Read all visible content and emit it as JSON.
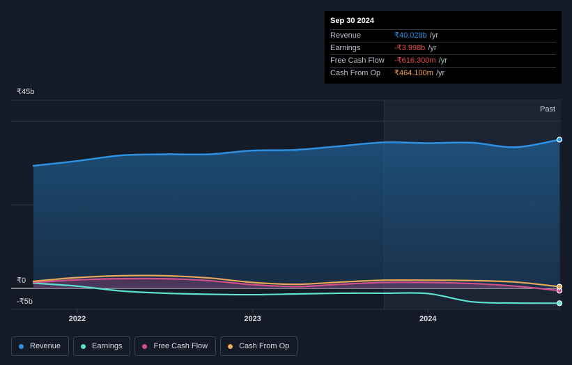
{
  "tooltip": {
    "date": "Sep 30 2024",
    "rows": [
      {
        "label": "Revenue",
        "value": "₹40.028b",
        "unit": "/yr",
        "color": "#2f8fe0"
      },
      {
        "label": "Earnings",
        "value": "-₹3.998b",
        "unit": "/yr",
        "color": "#e84d4d"
      },
      {
        "label": "Free Cash Flow",
        "value": "-₹616.300m",
        "unit": "/yr",
        "color": "#e84d4d"
      },
      {
        "label": "Cash From Op",
        "value": "₹464.100m",
        "unit": "/yr",
        "color": "#f0a24a"
      }
    ]
  },
  "past_label": "Past",
  "legend": [
    {
      "label": "Revenue",
      "color": "#2f8fe0"
    },
    {
      "label": "Earnings",
      "color": "#5ee0d0"
    },
    {
      "label": "Free Cash Flow",
      "color": "#d0508c"
    },
    {
      "label": "Cash From Op",
      "color": "#e8a85a"
    }
  ],
  "chart_data": {
    "type": "line",
    "ylabel_ticks": [
      {
        "value": 45,
        "label": "₹45b"
      },
      {
        "value": 0,
        "label": "₹0"
      },
      {
        "value": -5,
        "label": "-₹5b"
      }
    ],
    "ylim": [
      -5,
      45
    ],
    "xlim": [
      2021.75,
      2024.75
    ],
    "x_ticks": [
      {
        "value": 2022,
        "label": "2022"
      },
      {
        "value": 2023,
        "label": "2023"
      },
      {
        "value": 2024,
        "label": "2024"
      }
    ],
    "past_start": 2023.75,
    "series": [
      {
        "name": "Revenue",
        "color": "#2f8fe0",
        "fill": true,
        "x": [
          2021.75,
          2022.0,
          2022.25,
          2022.5,
          2022.75,
          2023.0,
          2023.25,
          2023.5,
          2023.75,
          2024.0,
          2024.25,
          2024.5,
          2024.75
        ],
        "y": [
          33.0,
          34.3,
          35.8,
          36.1,
          36.1,
          37.1,
          37.3,
          38.3,
          39.3,
          39.1,
          39.2,
          38.0,
          40.03
        ]
      },
      {
        "name": "Earnings",
        "color": "#5ee0d0",
        "fill": false,
        "x": [
          2021.75,
          2022.0,
          2022.25,
          2022.5,
          2022.75,
          2023.0,
          2023.25,
          2023.5,
          2023.75,
          2024.0,
          2024.25,
          2024.5,
          2024.75
        ],
        "y": [
          1.4,
          0.6,
          -0.7,
          -1.3,
          -1.6,
          -1.7,
          -1.5,
          -1.3,
          -1.3,
          -1.4,
          -3.6,
          -3.95,
          -4.0
        ]
      },
      {
        "name": "Free Cash Flow",
        "color": "#d0508c",
        "fill": true,
        "x": [
          2021.75,
          2022.0,
          2022.25,
          2022.5,
          2022.75,
          2023.0,
          2023.25,
          2023.5,
          2023.75,
          2024.0,
          2024.25,
          2024.5,
          2024.75
        ],
        "y": [
          1.6,
          2.3,
          2.6,
          2.6,
          2.1,
          1.0,
          0.5,
          1.1,
          1.6,
          1.6,
          1.3,
          0.6,
          -0.62
        ]
      },
      {
        "name": "Cash From Op",
        "color": "#e8a85a",
        "fill": false,
        "x": [
          2021.75,
          2022.0,
          2022.25,
          2022.5,
          2022.75,
          2023.0,
          2023.25,
          2023.5,
          2023.75,
          2024.0,
          2024.25,
          2024.5,
          2024.75
        ],
        "y": [
          1.9,
          2.9,
          3.4,
          3.4,
          2.8,
          1.6,
          1.1,
          1.7,
          2.2,
          2.2,
          2.1,
          1.7,
          0.46
        ]
      }
    ]
  }
}
